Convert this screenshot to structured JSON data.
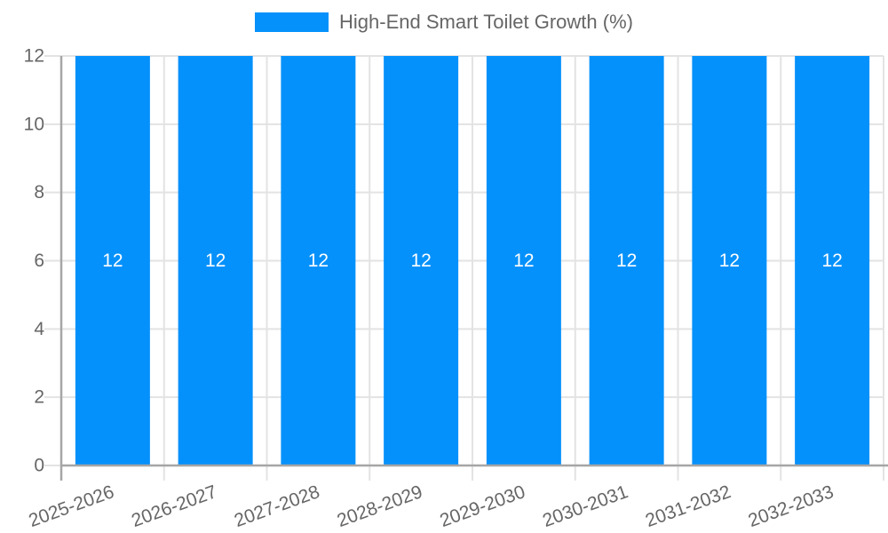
{
  "chart_data": {
    "type": "bar",
    "title": "High-End Smart Toilet Growth (%)",
    "categories": [
      "2025-2026",
      "2026-2027",
      "2027-2028",
      "2028-2029",
      "2029-2030",
      "2030-2031",
      "2031-2032",
      "2032-2033"
    ],
    "values": [
      12,
      12,
      12,
      12,
      12,
      12,
      12,
      12
    ],
    "bar_labels": [
      "12",
      "12",
      "12",
      "12",
      "12",
      "12",
      "12",
      "12"
    ],
    "xlabel": "",
    "ylabel": "",
    "ylim": [
      0,
      12
    ],
    "yticks": [
      0,
      2,
      4,
      6,
      8,
      10,
      12
    ],
    "ytick_labels": [
      "0",
      "2",
      "4",
      "6",
      "8",
      "10",
      "12"
    ],
    "grid": true,
    "legend_position": "top",
    "colors": {
      "bar": "#0591fb",
      "bar_label": "#ffffff",
      "axis_text": "#666666",
      "grid_line": "#e3e3e3",
      "axis_line": "#a6a6a6",
      "background": "#ffffff"
    }
  }
}
